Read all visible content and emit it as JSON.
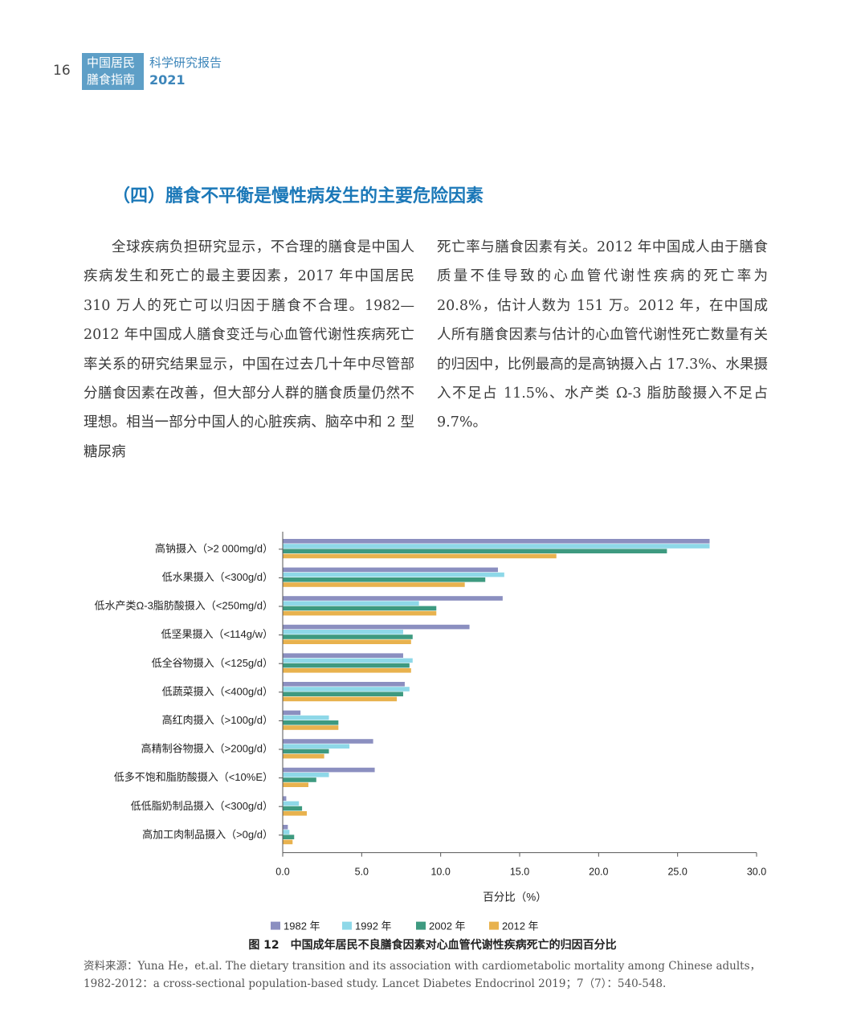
{
  "header": {
    "page_number": "16",
    "series_line1": "中国居民",
    "series_line2": "膳食指南",
    "report_title": "科学研究报告",
    "report_year": "2021"
  },
  "section": {
    "title": "（四）膳食不平衡是慢性病发生的主要危险因素"
  },
  "body": {
    "left_paragraph": "全球疾病负担研究显示，不合理的膳食是中国人疾病发生和死亡的最主要因素，2017 年中国居民 310 万人的死亡可以归因于膳食不合理。1982—2012 年中国成人膳食变迁与心血管代谢性疾病死亡率关系的研究结果显示，中国在过去几十年中尽管部分膳食因素在改善，但大部分人群的膳食质量仍然不理想。相当一部分中国人的心脏疾病、脑卒中和 2 型糖尿病",
    "right_paragraph": "死亡率与膳食因素有关。2012 年中国成人由于膳食质量不佳导致的心血管代谢性疾病的死亡率为 20.8%，估计人数为 151 万。2012 年，在中国成人所有膳食因素与估计的心血管代谢性死亡数量有关的归因中，比例最高的是高钠摄入占 17.3%、水果摄入不足占 11.5%、水产类 Ω-3 脂肪酸摄入不足占 9.7%。"
  },
  "figure": {
    "caption": "图 12　中国成年居民不良膳食因素对心血管代谢性疾病死亡的归因百分比",
    "source": "资料来源：Yuna He，et.al. The dietary transition and its association with cardiometabolic mortality among Chinese adults，1982-2012：a cross-sectional population-based study. Lancet Diabetes Endocrinol 2019；7（7）：540-548."
  },
  "chart_data": {
    "type": "bar",
    "orientation": "horizontal",
    "title": "",
    "xlabel": "百分比（%）",
    "ylabel": "",
    "xlim": [
      0,
      30
    ],
    "xticks": [
      "0.0",
      "5.0",
      "10.0",
      "15.0",
      "20.0",
      "25.0",
      "30.0"
    ],
    "grid": false,
    "legend_position": "bottom",
    "categories": [
      "高钠摄入（>2 000mg/d）",
      "低水果摄入（<300g/d）",
      "低水产类Ω-3脂肪酸摄入（<250mg/d）",
      "低坚果摄入（<114g/w）",
      "低全谷物摄入（<125g/d）",
      "低蔬菜摄入（<400g/d）",
      "高红肉摄入（>100g/d）",
      "高精制谷物摄入（>200g/d）",
      "低多不饱和脂肪酸摄入（<10%E）",
      "低低脂奶制品摄入（<300g/d）",
      "高加工肉制品摄入（>0g/d）"
    ],
    "series": [
      {
        "name": "1982 年",
        "color": "#8b8fc0",
        "values": [
          27.0,
          13.6,
          13.9,
          11.8,
          7.6,
          7.7,
          1.1,
          5.7,
          5.8,
          0.2,
          0.3
        ]
      },
      {
        "name": "1992 年",
        "color": "#8ed8e8",
        "values": [
          27.0,
          14.0,
          8.6,
          7.6,
          8.2,
          8.0,
          2.9,
          4.2,
          2.9,
          1.0,
          0.4
        ]
      },
      {
        "name": "2002 年",
        "color": "#3e9a80",
        "values": [
          24.3,
          12.8,
          9.7,
          8.2,
          8.0,
          7.6,
          3.5,
          2.9,
          2.1,
          1.2,
          0.7
        ]
      },
      {
        "name": "2012 年",
        "color": "#e8b24e",
        "values": [
          17.3,
          11.5,
          9.7,
          8.1,
          8.1,
          7.2,
          3.5,
          2.6,
          1.6,
          1.5,
          0.6
        ]
      }
    ]
  }
}
